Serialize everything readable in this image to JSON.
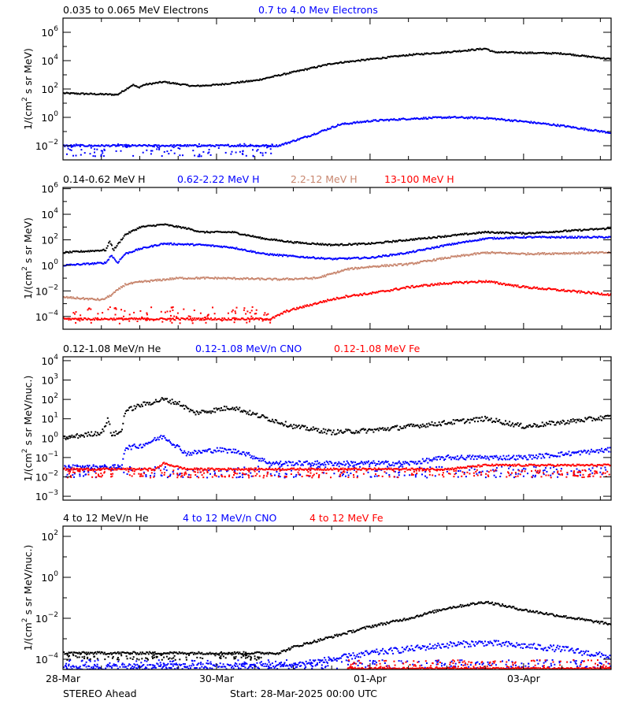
{
  "chart_data": {
    "type": "scatter",
    "mission": "STEREO Ahead",
    "start_label": "Start: 28-Mar-2025 00:00 UTC",
    "x_unit": "days since start",
    "xlim": [
      0,
      7.14
    ],
    "x_ticks": [
      {
        "t": 0,
        "label": "28-Mar"
      },
      {
        "t": 2,
        "label": "30-Mar"
      },
      {
        "t": 4,
        "label": "01-Apr"
      },
      {
        "t": 6,
        "label": "03-Apr"
      }
    ],
    "x_minor_step_days": 0.5,
    "panels": [
      {
        "ylabel": "1/(cm² s sr MeV)",
        "ylog_range": [
          -3,
          7
        ],
        "y_tick_exponents": [
          6,
          4,
          2,
          0,
          -2
        ],
        "series": [
          {
            "name": "0.035 to 0.065 MeV Electrons",
            "color": "#000000",
            "noise": 0.05,
            "log_points": [
              [
                0,
                1.7
              ],
              [
                0.7,
                1.6
              ],
              [
                0.9,
                2.3
              ],
              [
                0.97,
                2.1
              ],
              [
                1.05,
                2.3
              ],
              [
                1.3,
                2.5
              ],
              [
                1.5,
                2.35
              ],
              [
                1.7,
                2.2
              ],
              [
                2.0,
                2.3
              ],
              [
                2.5,
                2.6
              ],
              [
                3.0,
                3.2
              ],
              [
                3.5,
                3.8
              ],
              [
                4.0,
                4.1
              ],
              [
                4.5,
                4.4
              ],
              [
                5.0,
                4.6
              ],
              [
                5.5,
                4.85
              ],
              [
                5.6,
                4.6
              ],
              [
                6.5,
                4.5
              ],
              [
                7.14,
                4.1
              ]
            ]
          },
          {
            "name": "0.7 to 4.0 Mev Electrons",
            "color": "#0000ff",
            "noise": 0.06,
            "scatter_low": [
              0,
              2.8,
              -2.7,
              -1.8
            ],
            "log_points": [
              [
                0,
                -2.0
              ],
              [
                2.8,
                -2.0
              ],
              [
                3.2,
                -1.3
              ],
              [
                3.6,
                -0.5
              ],
              [
                4.0,
                -0.25
              ],
              [
                4.5,
                -0.1
              ],
              [
                5.0,
                0.0
              ],
              [
                5.5,
                -0.05
              ],
              [
                6.0,
                -0.3
              ],
              [
                6.5,
                -0.6
              ],
              [
                7.14,
                -1.1
              ]
            ]
          }
        ]
      },
      {
        "ylabel": "1/(cm² s sr MeV)",
        "ylog_range": [
          -5,
          6.1
        ],
        "y_tick_exponents": [
          6,
          4,
          2,
          0,
          -2,
          -4
        ],
        "series": [
          {
            "name": "0.14-0.62 MeV H",
            "color": "#000000",
            "noise": 0.06,
            "log_points": [
              [
                0,
                1.0
              ],
              [
                0.55,
                1.2
              ],
              [
                0.6,
                1.9
              ],
              [
                0.65,
                1.2
              ],
              [
                0.8,
                2.4
              ],
              [
                1.0,
                3.0
              ],
              [
                1.3,
                3.2
              ],
              [
                1.6,
                2.9
              ],
              [
                1.8,
                2.6
              ],
              [
                2.2,
                2.6
              ],
              [
                2.6,
                2.1
              ],
              [
                3.0,
                1.8
              ],
              [
                3.5,
                1.6
              ],
              [
                4.0,
                1.7
              ],
              [
                4.5,
                2.0
              ],
              [
                5.0,
                2.3
              ],
              [
                5.5,
                2.6
              ],
              [
                6.0,
                2.5
              ],
              [
                7.14,
                2.9
              ]
            ]
          },
          {
            "name": "0.62-2.22 MeV H",
            "color": "#0000ff",
            "noise": 0.06,
            "log_points": [
              [
                0,
                0.0
              ],
              [
                0.55,
                0.2
              ],
              [
                0.62,
                0.8
              ],
              [
                0.7,
                0.2
              ],
              [
                0.8,
                0.9
              ],
              [
                1.0,
                1.3
              ],
              [
                1.3,
                1.7
              ],
              [
                1.8,
                1.6
              ],
              [
                2.2,
                1.4
              ],
              [
                2.6,
                0.9
              ],
              [
                3.0,
                0.7
              ],
              [
                3.5,
                0.5
              ],
              [
                4.0,
                0.6
              ],
              [
                4.5,
                1.0
              ],
              [
                5.0,
                1.6
              ],
              [
                5.5,
                2.1
              ],
              [
                6.0,
                2.2
              ],
              [
                7.14,
                2.2
              ]
            ]
          },
          {
            "name": "2.2-12 MeV H",
            "color": "#c8866e",
            "noise": 0.07,
            "log_points": [
              [
                0,
                -2.5
              ],
              [
                0.5,
                -2.7
              ],
              [
                0.6,
                -2.4
              ],
              [
                0.8,
                -1.5
              ],
              [
                1.0,
                -1.3
              ],
              [
                1.5,
                -1.0
              ],
              [
                2.0,
                -1.0
              ],
              [
                2.8,
                -1.1
              ],
              [
                3.3,
                -1.0
              ],
              [
                3.7,
                -0.3
              ],
              [
                4.0,
                -0.1
              ],
              [
                4.5,
                0.1
              ],
              [
                5.0,
                0.6
              ],
              [
                5.5,
                1.0
              ],
              [
                6.0,
                0.9
              ],
              [
                7.14,
                1.0
              ]
            ]
          },
          {
            "name": "13-100 MeV H",
            "color": "#ff0000",
            "noise": 0.08,
            "scatter_low": [
              0,
              2.7,
              -4.5,
              -3.2
            ],
            "log_points": [
              [
                0,
                -4.2
              ],
              [
                2.7,
                -4.2
              ],
              [
                2.9,
                -3.6
              ],
              [
                3.4,
                -2.8
              ],
              [
                3.7,
                -2.4
              ],
              [
                4.0,
                -2.2
              ],
              [
                4.5,
                -1.7
              ],
              [
                5.0,
                -1.4
              ],
              [
                5.5,
                -1.25
              ],
              [
                6.0,
                -1.7
              ],
              [
                7.14,
                -2.3
              ]
            ]
          }
        ]
      },
      {
        "ylabel": "1/(cm² s sr MeV/nuc.)",
        "ylog_range": [
          -3.2,
          4.2
        ],
        "y_tick_exponents": [
          4,
          3,
          2,
          1,
          0,
          -1,
          -2,
          -3
        ],
        "series": [
          {
            "name": "0.12-1.08 MeV/n He",
            "color": "#000000",
            "noise": 0.12,
            "log_points": [
              [
                0,
                0.0
              ],
              [
                0.5,
                0.3
              ],
              [
                0.58,
                1.0
              ],
              [
                0.62,
                0.2
              ],
              [
                0.75,
                0.3
              ],
              [
                0.8,
                1.4
              ],
              [
                1.0,
                1.7
              ],
              [
                1.3,
                2.0
              ],
              [
                1.5,
                1.8
              ],
              [
                1.7,
                1.3
              ],
              [
                1.9,
                1.4
              ],
              [
                2.2,
                1.6
              ],
              [
                2.5,
                1.2
              ],
              [
                3.0,
                0.6
              ],
              [
                3.5,
                0.3
              ],
              [
                4.0,
                0.4
              ],
              [
                4.5,
                0.6
              ],
              [
                5.0,
                0.8
              ],
              [
                5.5,
                1.0
              ],
              [
                6.0,
                0.6
              ],
              [
                7.14,
                1.1
              ]
            ]
          },
          {
            "name": "0.12-1.08 MeV/n CNO",
            "color": "#0000ff",
            "noise": 0.12,
            "scatter_low": [
              0,
              7.14,
              -2.0,
              -1.4
            ],
            "log_points": [
              [
                0,
                -1.5
              ],
              [
                0.75,
                -1.5
              ],
              [
                0.8,
                -0.5
              ],
              [
                1.0,
                -0.4
              ],
              [
                1.3,
                0.1
              ],
              [
                1.6,
                -0.8
              ],
              [
                2.0,
                -0.6
              ],
              [
                2.3,
                -0.7
              ],
              [
                2.7,
                -1.3
              ],
              [
                4.5,
                -1.3
              ],
              [
                5.0,
                -1.0
              ],
              [
                6.0,
                -1.0
              ],
              [
                7.14,
                -0.6
              ]
            ]
          },
          {
            "name": "0.12-1.08 MeV Fe",
            "color": "#ff0000",
            "noise": 0.05,
            "scatter_low": [
              0,
              7.14,
              -2.0,
              -1.6
            ],
            "log_points": [
              [
                0,
                -1.6
              ],
              [
                1.2,
                -1.6
              ],
              [
                1.3,
                -1.3
              ],
              [
                1.6,
                -1.6
              ],
              [
                5.0,
                -1.6
              ],
              [
                5.5,
                -1.4
              ],
              [
                7.14,
                -1.4
              ]
            ]
          }
        ]
      },
      {
        "ylabel": "1/(cm² s sr MeV/nuc.)",
        "ylog_range": [
          -4.5,
          2.5
        ],
        "y_tick_exponents": [
          2,
          0,
          -2,
          -4
        ],
        "series": [
          {
            "name": "4 to 12 MeV/n He",
            "color": "#000000",
            "noise": 0.06,
            "scatter_low": [
              0,
              2.6,
              -4.0,
              -3.7
            ],
            "log_points": [
              [
                0,
                -3.7
              ],
              [
                2.8,
                -3.7
              ],
              [
                3.0,
                -3.4
              ],
              [
                3.5,
                -2.9
              ],
              [
                4.0,
                -2.4
              ],
              [
                4.5,
                -2.0
              ],
              [
                5.0,
                -1.5
              ],
              [
                5.5,
                -1.2
              ],
              [
                6.0,
                -1.6
              ],
              [
                7.14,
                -2.3
              ]
            ]
          },
          {
            "name": "4 to 12 MeV/n CNO",
            "color": "#0000ff",
            "noise": 0.15,
            "scatter_low": [
              0,
              7.14,
              -4.45,
              -4.0
            ],
            "log_points": [
              [
                0,
                -4.4
              ],
              [
                3.0,
                -4.3
              ],
              [
                4.0,
                -3.7
              ],
              [
                5.0,
                -3.3
              ],
              [
                5.5,
                -3.2
              ],
              [
                6.5,
                -3.5
              ],
              [
                7.14,
                -3.9
              ]
            ]
          },
          {
            "name": "4 to 12 MeV Fe",
            "color": "#ff0000",
            "noise": 0.04,
            "scatter_low": [
              3.7,
              7.14,
              -4.45,
              -4.0
            ],
            "log_points": [
              [
                3.7,
                -4.45
              ],
              [
                7.14,
                -4.45
              ]
            ]
          }
        ]
      }
    ]
  }
}
